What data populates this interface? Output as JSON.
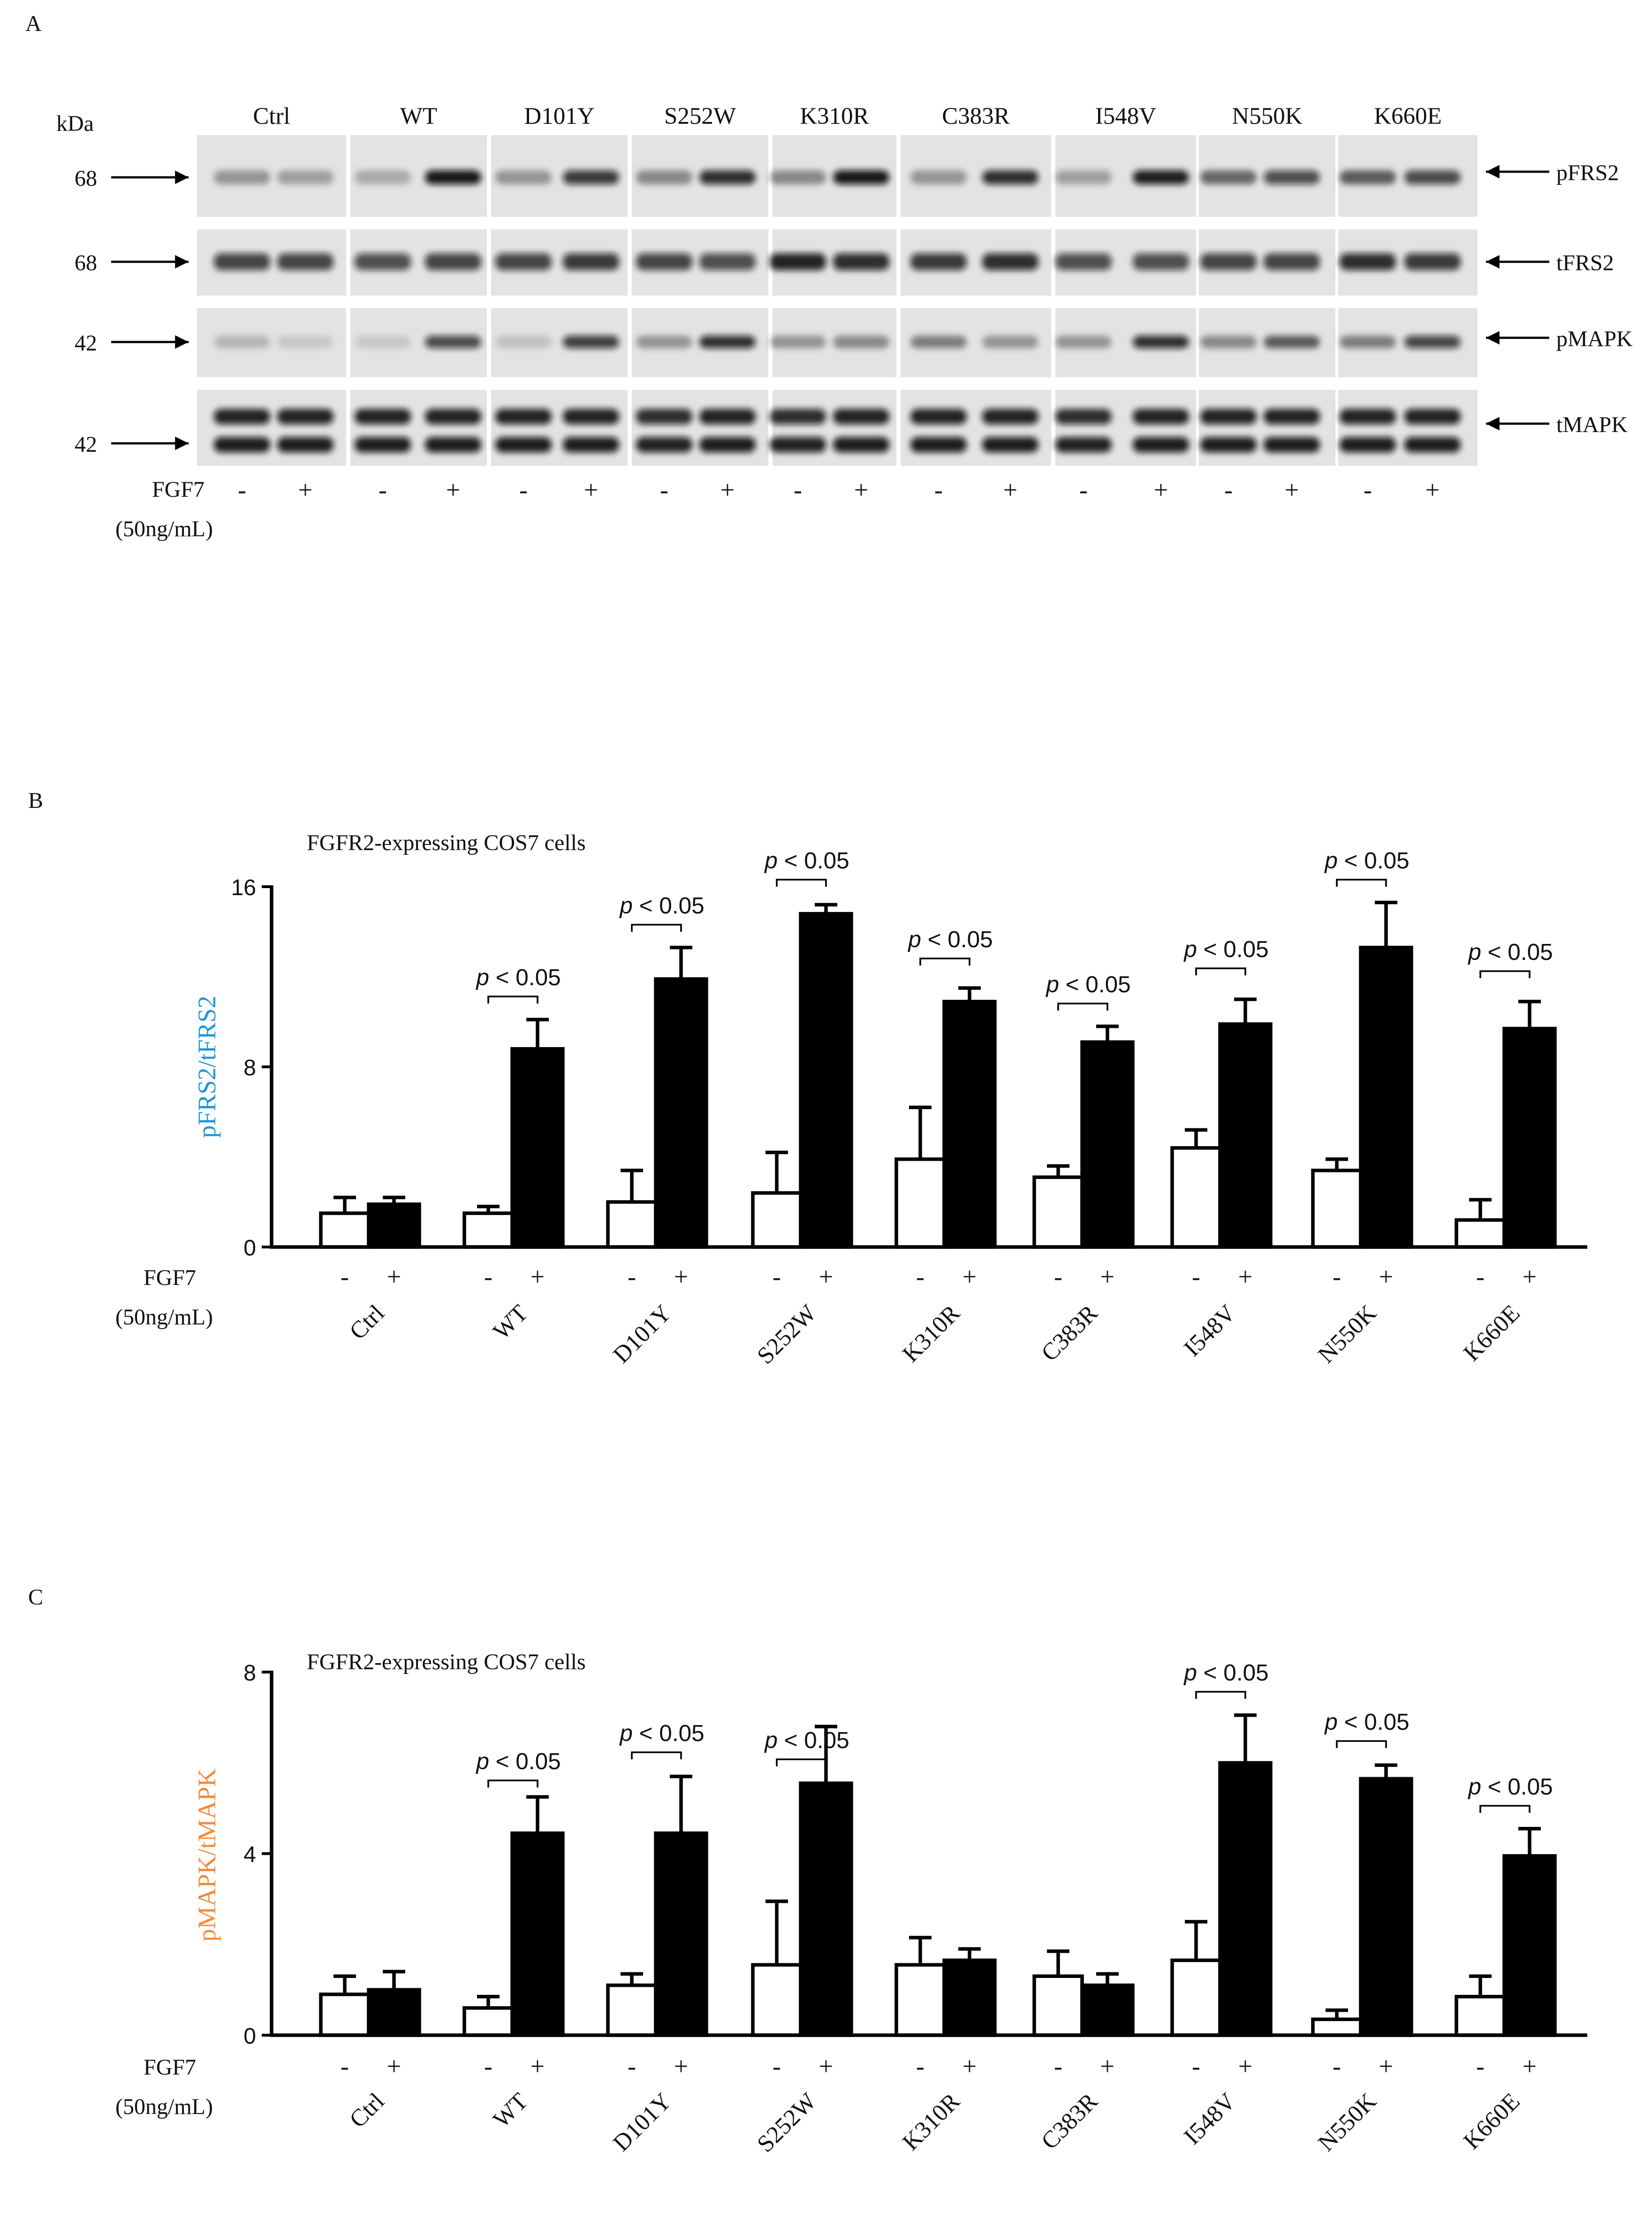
{
  "panel_a": {
    "label": "A",
    "kda_label": "kDa",
    "membrane_color": "#e3e3e3",
    "groups": [
      "Ctrl",
      "WT",
      "D101Y",
      "S252W",
      "K310R",
      "C383R",
      "I548V",
      "N550K",
      "K660E"
    ],
    "treatment_label": "FGF7",
    "dose_label": "(50ng/mL)",
    "treatment_signs": [
      "-",
      "+"
    ],
    "rows": [
      {
        "name": "pFRS2",
        "marker": "68",
        "intensity": [
          0.35,
          0.3,
          0.25,
          0.95,
          0.35,
          0.8,
          0.4,
          0.85,
          0.4,
          0.95,
          0.35,
          0.85,
          0.3,
          0.92,
          0.55,
          0.7,
          0.6,
          0.72
        ]
      },
      {
        "name": "tFRS2",
        "marker": "68",
        "intensity": [
          0.75,
          0.75,
          0.7,
          0.75,
          0.75,
          0.8,
          0.75,
          0.7,
          0.9,
          0.85,
          0.8,
          0.85,
          0.7,
          0.7,
          0.75,
          0.75,
          0.85,
          0.8
        ]
      },
      {
        "name": "pMAPK",
        "marker": "42",
        "intensity": [
          0.2,
          0.12,
          0.12,
          0.72,
          0.15,
          0.78,
          0.35,
          0.85,
          0.35,
          0.4,
          0.45,
          0.35,
          0.35,
          0.85,
          0.4,
          0.6,
          0.45,
          0.75
        ]
      },
      {
        "name": "tMAPK",
        "marker": "42",
        "intensity": [
          0.9,
          0.9,
          0.9,
          0.9,
          0.9,
          0.9,
          0.85,
          0.9,
          0.85,
          0.9,
          0.9,
          0.9,
          0.85,
          0.9,
          0.9,
          0.9,
          0.9,
          0.9
        ],
        "intensity_lower": [
          0.92,
          0.92,
          0.92,
          0.92,
          0.92,
          0.92,
          0.9,
          0.92,
          0.9,
          0.92,
          0.92,
          0.92,
          0.9,
          0.92,
          0.92,
          0.92,
          0.92,
          0.92
        ]
      }
    ]
  },
  "chart_data": [
    {
      "panel_label": "B",
      "type": "bar",
      "title": "FGFR2-expressing COS7 cells",
      "xlabel": "",
      "ylabel": "pFRS2/tFRS2",
      "ylabel_color": "#1e96d6",
      "ylim": [
        0,
        16
      ],
      "yticks": [
        0,
        8,
        16
      ],
      "treatment_label": "FGF7",
      "dose_label": "(50ng/mL)",
      "categories": [
        "Ctrl",
        "WT",
        "D101Y",
        "S252W",
        "K310R",
        "C383R",
        "I548V",
        "N550K",
        "K660E"
      ],
      "series": [
        {
          "sign": "-",
          "fill": "#ffffff",
          "values": [
            1.5,
            1.5,
            2.0,
            2.4,
            3.9,
            3.1,
            4.4,
            3.4,
            1.2
          ],
          "errors": [
            0.7,
            0.3,
            1.4,
            1.8,
            2.3,
            0.5,
            0.8,
            0.5,
            0.9
          ]
        },
        {
          "sign": "+",
          "fill": "#000000",
          "values": [
            1.9,
            8.8,
            11.9,
            14.8,
            10.9,
            9.1,
            9.9,
            13.3,
            9.7
          ],
          "errors": [
            0.3,
            1.3,
            1.4,
            0.4,
            0.6,
            0.7,
            1.1,
            2.0,
            1.2
          ]
        }
      ],
      "significance": [
        "",
        "p < 0.05",
        "p < 0.05",
        "p < 0.05",
        "p < 0.05",
        "p < 0.05",
        "p < 0.05",
        "p < 0.05",
        "p < 0.05"
      ]
    },
    {
      "panel_label": "C",
      "type": "bar",
      "title": "FGFR2-expressing COS7 cells",
      "xlabel": "",
      "ylabel": "pMAPK/tMAPK",
      "ylabel_color": "#f28a3a",
      "ylim": [
        0,
        8
      ],
      "yticks": [
        0,
        4,
        8
      ],
      "treatment_label": "FGF7",
      "dose_label": "(50ng/mL)",
      "categories": [
        "Ctrl",
        "WT",
        "D101Y",
        "S252W",
        "K310R",
        "C383R",
        "I548V",
        "N550K",
        "K660E"
      ],
      "series": [
        {
          "sign": "-",
          "fill": "#ffffff",
          "values": [
            0.9,
            0.6,
            1.1,
            1.55,
            1.55,
            1.3,
            1.65,
            0.35,
            0.85
          ],
          "errors": [
            0.4,
            0.25,
            0.25,
            1.4,
            0.6,
            0.55,
            0.85,
            0.2,
            0.45
          ]
        },
        {
          "sign": "+",
          "fill": "#000000",
          "values": [
            1.0,
            4.45,
            4.45,
            5.55,
            1.65,
            1.1,
            6.0,
            5.65,
            3.95
          ],
          "errors": [
            0.4,
            0.8,
            1.25,
            1.25,
            0.25,
            0.25,
            1.05,
            0.3,
            0.6
          ]
        }
      ],
      "significance": [
        "",
        "p < 0.05",
        "p < 0.05",
        "p < 0.05",
        "",
        "",
        "p < 0.05",
        "p < 0.05",
        "p < 0.05"
      ]
    }
  ]
}
